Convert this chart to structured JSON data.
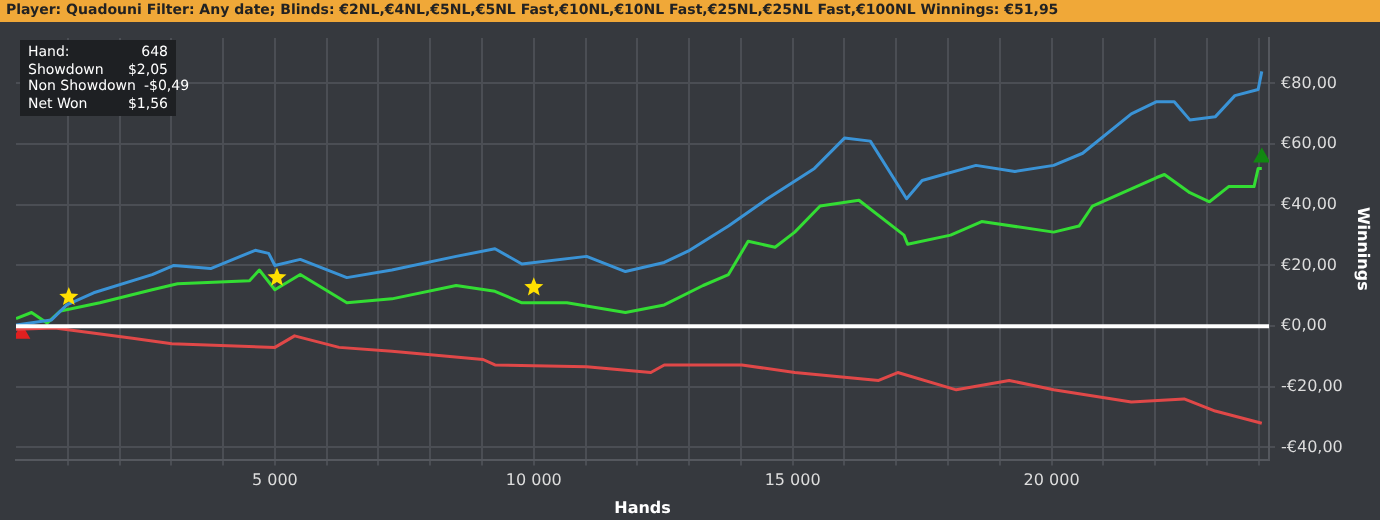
{
  "chart_data": {
    "type": "line",
    "title": "Player: Quadouni Filter: Any date; Blinds: €2NL,€4NL,€5NL,€5NL Fast,€10NL,€10NL Fast,€25NL,€25NL Fast,€100NL Winnings: €51,95",
    "xlabel": "Hands",
    "ylabel": "Winnings",
    "annotations": [
      "Hand: 648",
      "Showdown $2,05",
      "Non Showdown -$0,49",
      "Net Won $1,56"
    ],
    "xlim": [
      0,
      24200
    ],
    "ylim": [
      -44,
      95
    ],
    "xticks": [
      {
        "value": 1000,
        "label": null
      },
      {
        "value": 2000,
        "label": null
      },
      {
        "value": 3000,
        "label": null
      },
      {
        "value": 4000,
        "label": null
      },
      {
        "value": 5000,
        "label": "5 000"
      },
      {
        "value": 6000,
        "label": null
      },
      {
        "value": 7000,
        "label": null
      },
      {
        "value": 8000,
        "label": null
      },
      {
        "value": 9000,
        "label": null
      },
      {
        "value": 10000,
        "label": "10 000"
      },
      {
        "value": 11000,
        "label": null
      },
      {
        "value": 12000,
        "label": null
      },
      {
        "value": 13000,
        "label": null
      },
      {
        "value": 14000,
        "label": null
      },
      {
        "value": 15000,
        "label": "15 000"
      },
      {
        "value": 16000,
        "label": null
      },
      {
        "value": 17000,
        "label": null
      },
      {
        "value": 18000,
        "label": null
      },
      {
        "value": 19000,
        "label": null
      },
      {
        "value": 20000,
        "label": "20 000"
      },
      {
        "value": 21000,
        "label": null
      },
      {
        "value": 22000,
        "label": null
      },
      {
        "value": 23000,
        "label": null
      },
      {
        "value": 24000,
        "label": null
      }
    ],
    "yticks": [
      {
        "value": -40,
        "label": "-€40,00"
      },
      {
        "value": -20,
        "label": "-€20,00"
      },
      {
        "value": 0,
        "label": "€0,00"
      },
      {
        "value": 20,
        "label": "€20,00"
      },
      {
        "value": 40,
        "label": "€40,00"
      },
      {
        "value": 60,
        "label": "€60,00"
      },
      {
        "value": 80,
        "label": "€80,00"
      }
    ],
    "grid": true,
    "legend": false,
    "marker": "none",
    "line_style": "solid",
    "ref_lines": [
      {
        "axis": "y",
        "value": 0,
        "color": "#ffffff"
      }
    ],
    "series": [
      {
        "color": "#3a93d6",
        "x": [
          0,
          680,
          980,
          1500,
          2630,
          3050,
          3760,
          4620,
          4880,
          5000,
          5490,
          6390,
          7260,
          8500,
          9250,
          9770,
          11020,
          11770,
          12520,
          13010,
          13760,
          14510,
          15420,
          16000,
          16500,
          17200,
          17500,
          18540,
          19290,
          20040,
          20600,
          21540,
          22030,
          22370,
          22670,
          23160,
          23540,
          23990,
          24060
        ],
        "values": [
          0.4,
          2,
          7,
          11,
          17,
          20,
          19,
          25,
          24,
          20,
          22,
          16,
          18.5,
          23,
          25.5,
          20.5,
          23,
          18,
          21,
          25,
          33,
          42,
          52,
          62,
          61,
          42,
          48,
          53,
          51,
          53,
          57,
          70,
          74,
          74,
          68,
          69,
          76,
          78,
          84
        ]
      },
      {
        "color": "#33dd33",
        "x": [
          0,
          300,
          600,
          860,
          1620,
          2630,
          3120,
          4510,
          4700,
          5000,
          5490,
          6390,
          7260,
          8500,
          9250,
          9770,
          10640,
          11770,
          12520,
          13270,
          13760,
          14140,
          14660,
          15040,
          15530,
          16280,
          17150,
          17220,
          18050,
          18650,
          20040,
          20530,
          20790,
          22030,
          22180,
          22670,
          23050,
          23420,
          23910,
          23990,
          24060
        ],
        "values": [
          2.5,
          4.5,
          1,
          5,
          7.7,
          12,
          14,
          15,
          18.5,
          12,
          17,
          7.7,
          9,
          13.4,
          11.5,
          7.7,
          7.7,
          4.5,
          7,
          13.4,
          17,
          28,
          26,
          31,
          39.6,
          41.5,
          30,
          27,
          30,
          34.5,
          31,
          33,
          39.6,
          49,
          50,
          44,
          41,
          46,
          46,
          52,
          52
        ]
      },
      {
        "color": "#e04848",
        "x": [
          0,
          750,
          2250,
          3010,
          5000,
          5380,
          6240,
          7260,
          9020,
          9250,
          11020,
          12260,
          12520,
          14020,
          15040,
          16660,
          17030,
          18160,
          19180,
          20040,
          21540,
          22560,
          23160,
          24060
        ],
        "values": [
          -1,
          -0.6,
          -4,
          -5.8,
          -7,
          -3.2,
          -7,
          -8.3,
          -11,
          -12.8,
          -13.4,
          -15.3,
          -12.8,
          -12.8,
          -15.3,
          -17.9,
          -15.3,
          -21,
          -17.9,
          -21,
          -25,
          -24,
          -28,
          -32
        ]
      },
      {
        "type": "scatter",
        "marker": "star",
        "color": "#ffe000",
        "x": [
          1020,
          5040,
          10000
        ],
        "values": [
          9.6,
          16,
          12.8
        ]
      },
      {
        "type": "scatter",
        "marker": "triangle",
        "color": "#e02020",
        "x": [
          110
        ],
        "values": [
          -2.5
        ]
      },
      {
        "type": "scatter",
        "marker": "triangle",
        "color": "#118811",
        "x": [
          24060
        ],
        "values": [
          55.6
        ]
      }
    ]
  }
}
